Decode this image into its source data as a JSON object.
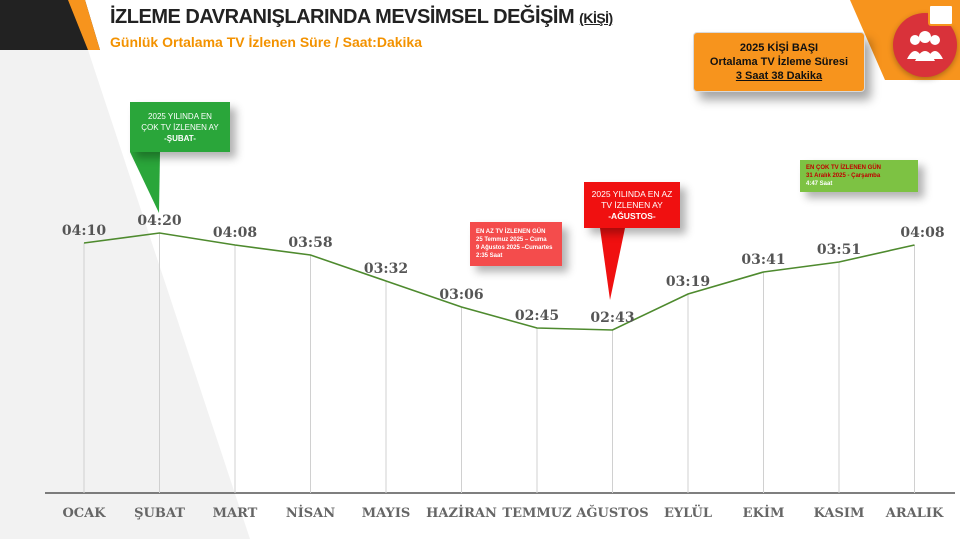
{
  "header": {
    "title": "İZLEME DAVRANIŞLARINDA MEVSİMSEL DEĞİŞİM",
    "title_suffix": "(KİŞİ)",
    "subtitle": "Günlük Ortalama TV İzlenen Süre / Saat:Dakika"
  },
  "summary_box": {
    "line1": "2025 KİŞİ BAŞI",
    "line2": "Ortalama TV İzleme Süresi",
    "line3": "3 Saat 38 Dakika"
  },
  "callouts": {
    "max_month": {
      "line1": "2025 YILINDA EN",
      "line2": "ÇOK TV İZLENEN AY",
      "line3": "-ŞUBAT-"
    },
    "min_month": {
      "line1": "2025 YILINDA EN AZ",
      "line2": "TV İZLENEN AY",
      "line3": "-AĞUSTOS-"
    },
    "min_day": {
      "line1": "EN AZ TV İZLENEN GÜN",
      "line2": "25 Temmuz 2025 – Cuma",
      "line3": "9 Ağustos 2025 –Cumartes",
      "line4": "2:35 Saat"
    },
    "max_day": {
      "line1": "EN ÇOK TV İZLENEN GÜN",
      "line2": "31 Aralık 2025 - Çarşamba",
      "line3": "4:47 Saat"
    }
  },
  "colors": {
    "line": "#4e8a2e",
    "accent": "#f7941d",
    "max": "#2aa63a",
    "min": "#f01010"
  },
  "icons": [
    "people-icon",
    "tv-icon"
  ],
  "chart_data": {
    "type": "line",
    "categories": [
      "OCAK",
      "ŞUBAT",
      "MART",
      "NİSAN",
      "MAYIS",
      "HAZİRAN",
      "TEMMUZ",
      "AĞUSTOS",
      "EYLÜL",
      "EKİM",
      "KASIM",
      "ARALIK"
    ],
    "labels": [
      "04:10",
      "04:20",
      "04:08",
      "03:58",
      "03:32",
      "03:06",
      "02:45",
      "02:43",
      "03:19",
      "03:41",
      "03:51",
      "04:08"
    ],
    "values_minutes": [
      250,
      260,
      248,
      238,
      212,
      186,
      165,
      163,
      199,
      221,
      231,
      248
    ],
    "grid": "vertical"
  }
}
